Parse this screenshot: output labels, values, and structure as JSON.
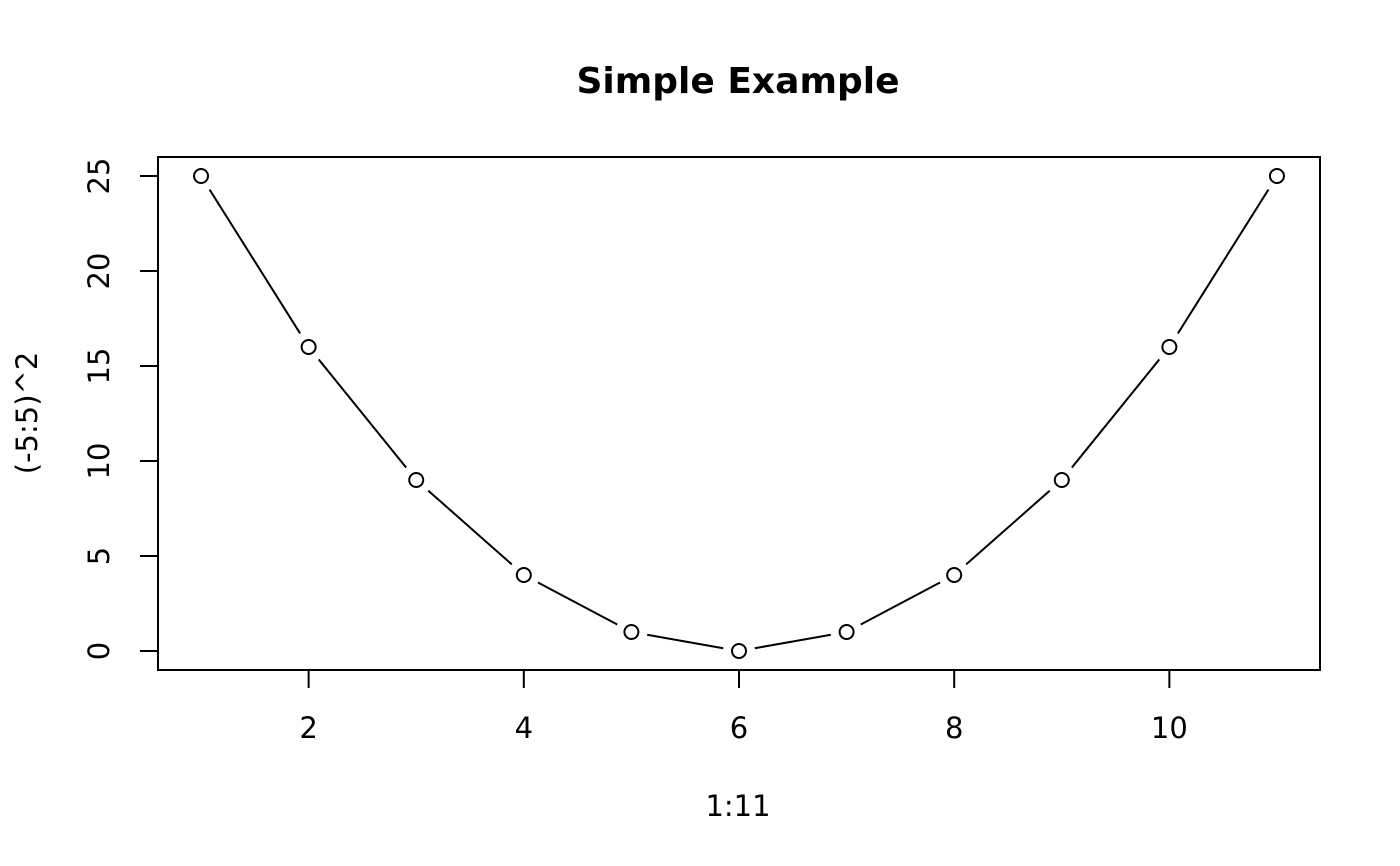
{
  "chart_data": {
    "type": "line",
    "title": "Simple Example",
    "xlabel": "1:11",
    "ylabel": "(-5:5)^2",
    "x": [
      1,
      2,
      3,
      4,
      5,
      6,
      7,
      8,
      9,
      10,
      11
    ],
    "y": [
      25,
      16,
      9,
      4,
      1,
      0,
      1,
      4,
      9,
      16,
      25
    ],
    "xticks": [
      2,
      4,
      6,
      8,
      10
    ],
    "yticks": [
      0,
      5,
      10,
      15,
      20,
      25
    ],
    "xlim": [
      0.6,
      11.4
    ],
    "ylim": [
      -1,
      26
    ],
    "marker": "open-circle",
    "line_style": "segments-between-points",
    "grid": false,
    "legend": "none"
  }
}
